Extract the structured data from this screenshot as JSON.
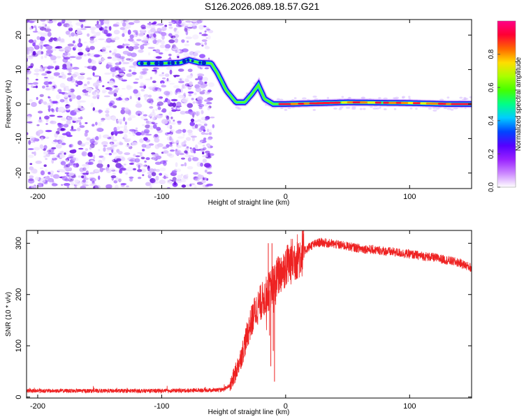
{
  "title": "S126.2026.089.18.57.G21",
  "chart_data": [
    {
      "type": "heatmap",
      "name": "spectrogram",
      "xlabel": "Height of straight line (km)",
      "ylabel": "Frequency (Hz)",
      "xlim": [
        -209,
        150
      ],
      "ylim": [
        -24.5,
        24.5
      ],
      "xticks": [
        -200,
        -100,
        0,
        100
      ],
      "yticks": [
        -20,
        -10,
        0,
        10,
        20
      ],
      "xtick_labels": [
        "-200",
        "-100",
        "0",
        "100"
      ],
      "ytick_labels": [
        "-20",
        "-10",
        "0",
        "10",
        "20"
      ],
      "noise_region_x": [
        -209,
        -60
      ],
      "ridge_curve": [
        [
          -118,
          11.8
        ],
        [
          -100,
          11.8
        ],
        [
          -85,
          12.0
        ],
        [
          -78,
          12.8
        ],
        [
          -70,
          12.0
        ],
        [
          -60,
          11.8
        ],
        [
          -55,
          9.0
        ],
        [
          -48,
          4.0
        ],
        [
          -40,
          0.5
        ],
        [
          -33,
          0.5
        ],
        [
          -27,
          3.0
        ],
        [
          -22,
          5.5
        ],
        [
          -17,
          1.5
        ],
        [
          -10,
          0.0
        ],
        [
          0,
          0.0
        ],
        [
          50,
          0.5
        ],
        [
          100,
          0.3
        ],
        [
          130,
          0.0
        ],
        [
          150,
          0.0
        ]
      ],
      "colorbar": {
        "label": "Normalized spectral amplitude",
        "range": [
          0,
          1
        ],
        "ticks": [
          0.0,
          0.2,
          0.4,
          0.6,
          0.8
        ],
        "tick_labels": [
          "0.0",
          "0.2",
          "0.4",
          "0.6",
          "0.8"
        ],
        "colors": [
          "#ffffff",
          "#cc88ff",
          "#9922ff",
          "#5500ff",
          "#0044ff",
          "#00ccff",
          "#00ff88",
          "#44ff00",
          "#aaff00",
          "#ffdd00",
          "#ff6600",
          "#ff0033",
          "#ff0088"
        ]
      }
    },
    {
      "type": "line",
      "name": "snr",
      "xlabel": "Height of straight line (km)",
      "ylabel": "SNR (10 * v/v)",
      "xlim": [
        -209,
        150
      ],
      "ylim": [
        -2,
        325
      ],
      "xticks": [
        -200,
        -100,
        0,
        100
      ],
      "yticks": [
        0,
        100,
        200,
        300
      ],
      "xtick_labels": [
        "-200",
        "-100",
        "0",
        "100"
      ],
      "ytick_labels": [
        "0",
        "100",
        "200",
        "300"
      ],
      "color": "#ee2222",
      "trend": [
        [
          -209,
          12
        ],
        [
          -100,
          12
        ],
        [
          -50,
          14
        ],
        [
          -44,
          25
        ],
        [
          -40,
          50
        ],
        [
          -35,
          85
        ],
        [
          -30,
          130
        ],
        [
          -25,
          165
        ],
        [
          -20,
          185
        ],
        [
          -15,
          200
        ],
        [
          -10,
          220
        ],
        [
          -5,
          240
        ],
        [
          0,
          255
        ],
        [
          10,
          275
        ],
        [
          20,
          295
        ],
        [
          28,
          302
        ],
        [
          40,
          298
        ],
        [
          60,
          290
        ],
        [
          90,
          282
        ],
        [
          120,
          272
        ],
        [
          140,
          262
        ],
        [
          150,
          252
        ]
      ],
      "spikes": [
        [
          -14,
          300
        ],
        [
          -12,
          60
        ],
        [
          -11,
          300
        ],
        [
          -9,
          30
        ],
        [
          -8,
          180
        ],
        [
          -10,
          90
        ],
        [
          -13,
          120
        ]
      ]
    }
  ]
}
